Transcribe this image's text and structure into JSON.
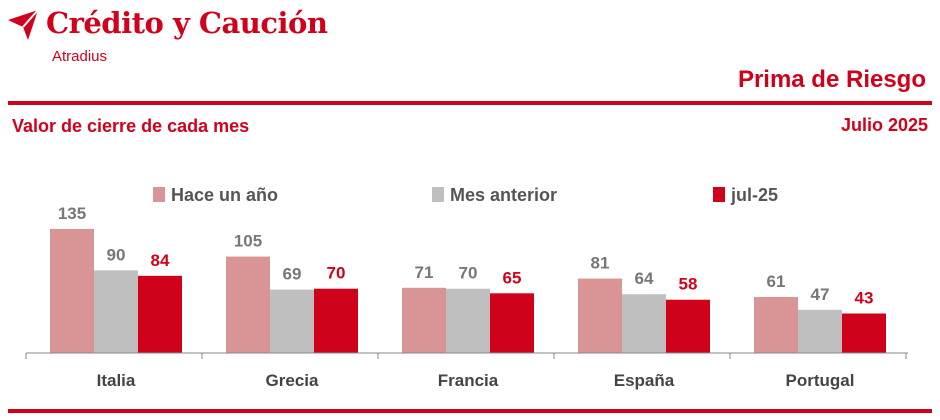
{
  "header": {
    "brand": "Crédito y Caución",
    "brand_sub": "Atradius",
    "title": "Prima de Riesgo",
    "subtitle": "Valor de cierre de cada mes",
    "date": "Julio 2025"
  },
  "icons": {
    "logo": "credito-y-caucion-logo-icon"
  },
  "colors": {
    "brand": "#d0021b",
    "hace_un_ano": "#d99595",
    "mes_anterior": "#bfbfbf",
    "jul_25": "#d0021b",
    "value_gray": "#777777",
    "axis": "#888888"
  },
  "chart_data": {
    "type": "bar",
    "title": "Prima de Riesgo",
    "subtitle": "Valor de cierre de cada mes",
    "categories": [
      "Italia",
      "Grecia",
      "Francia",
      "España",
      "Portugal"
    ],
    "series": [
      {
        "name": "Hace un año",
        "values": [
          135,
          105,
          71,
          81,
          61
        ]
      },
      {
        "name": "Mes anterior",
        "values": [
          90,
          69,
          70,
          64,
          47
        ]
      },
      {
        "name": "jul-25",
        "values": [
          84,
          70,
          65,
          58,
          43
        ]
      }
    ],
    "ylim": [
      0,
      135
    ],
    "grid": false,
    "legend": "top",
    "xlabel": "",
    "ylabel": ""
  }
}
